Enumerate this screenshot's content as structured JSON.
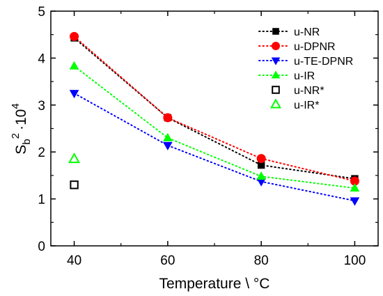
{
  "chart_data": {
    "type": "scatter",
    "xlabel": "Temperature \\ °C",
    "ylabel": {
      "base": "S",
      "sub": "b",
      "sup": "2",
      "suffix": "·10",
      "suffix_sup": "4"
    },
    "xlim": [
      35,
      105
    ],
    "ylim": [
      0,
      5
    ],
    "xticks": [
      "40",
      "60",
      "80",
      "100"
    ],
    "yticks": [
      "0",
      "1",
      "2",
      "3",
      "4",
      "5"
    ],
    "grid": false,
    "legend_position": "top-right",
    "series": [
      {
        "name": "u-NR",
        "color": "#000000",
        "marker": "square",
        "filled": true,
        "line": "dotted",
        "x": [
          40,
          60,
          80,
          100
        ],
        "y": [
          4.43,
          2.73,
          1.72,
          1.43
        ]
      },
      {
        "name": "u-DPNR",
        "color": "#ff0000",
        "marker": "circle",
        "filled": true,
        "line": "dotted",
        "x": [
          40,
          60,
          80,
          100
        ],
        "y": [
          4.46,
          2.73,
          1.86,
          1.38
        ]
      },
      {
        "name": "u-TE-DPNR",
        "color": "#0000ff",
        "marker": "triangle-down",
        "filled": true,
        "line": "dotted",
        "x": [
          40,
          60,
          80,
          100
        ],
        "y": [
          3.25,
          2.14,
          1.37,
          0.96
        ]
      },
      {
        "name": "u-IR",
        "color": "#00ff00",
        "marker": "triangle-up",
        "filled": true,
        "line": "dotted",
        "x": [
          40,
          60,
          80,
          100
        ],
        "y": [
          3.83,
          2.3,
          1.48,
          1.23
        ]
      },
      {
        "name": "u-NR*",
        "color": "#000000",
        "marker": "square",
        "filled": false,
        "line": "none",
        "x": [
          40
        ],
        "y": [
          1.3
        ]
      },
      {
        "name": "u-IR*",
        "color": "#00ff00",
        "marker": "triangle-up",
        "filled": false,
        "line": "none",
        "x": [
          40
        ],
        "y": [
          1.85
        ]
      }
    ]
  }
}
